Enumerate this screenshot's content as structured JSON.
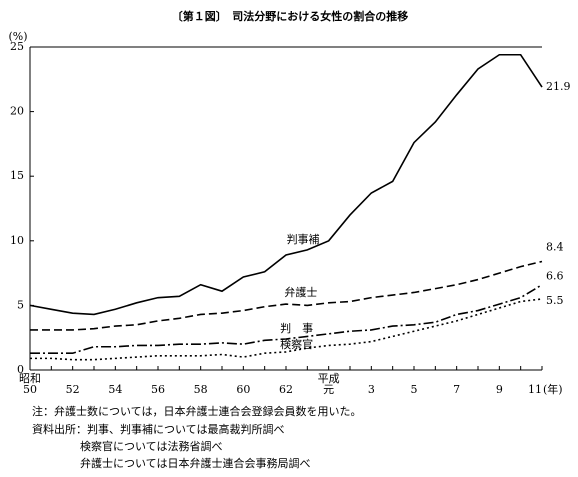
{
  "chart_data": {
    "type": "line",
    "title": "〔第１図〕　司法分野における女性の割合の推移",
    "y_label": "(%)",
    "x_label": "(年)",
    "era_labels": [
      "昭和",
      "平成"
    ],
    "categories": [
      "50",
      null,
      "52",
      null,
      "54",
      null,
      "56",
      null,
      "58",
      null,
      "60",
      null,
      "62",
      null,
      "元",
      null,
      "3",
      null,
      "5",
      null,
      "7",
      null,
      "9",
      null,
      "11"
    ],
    "ylim": [
      0,
      25
    ],
    "yticks": [
      0,
      5,
      10,
      15,
      20,
      25
    ],
    "series": [
      {
        "name": "判事補",
        "color": "#000000",
        "values": [
          5.0,
          4.7,
          4.4,
          4.3,
          4.7,
          5.2,
          5.6,
          5.7,
          6.6,
          6.1,
          7.2,
          7.6,
          8.9,
          9.3,
          10.0,
          12.0,
          13.7,
          14.6,
          17.6,
          19.2,
          21.3,
          23.3,
          24.4,
          24.4,
          21.9
        ]
      },
      {
        "name": "弁護士",
        "color": "#000000",
        "values": [
          3.1,
          3.1,
          3.1,
          3.2,
          3.4,
          3.5,
          3.8,
          4.0,
          4.3,
          4.4,
          4.6,
          4.9,
          5.1,
          5.0,
          5.2,
          5.3,
          5.6,
          5.8,
          6.0,
          6.3,
          6.6,
          7.0,
          7.5,
          8.0,
          8.4
        ]
      },
      {
        "name": "判　事",
        "color": "#000000",
        "values": [
          1.3,
          1.3,
          1.3,
          1.8,
          1.8,
          1.9,
          1.9,
          2.0,
          2.0,
          2.1,
          2.0,
          2.3,
          2.4,
          2.6,
          2.8,
          3.0,
          3.1,
          3.4,
          3.5,
          3.7,
          4.3,
          4.6,
          5.1,
          5.6,
          6.6
        ]
      },
      {
        "name": "検察官",
        "color": "#000000",
        "values": [
          0.9,
          0.9,
          0.8,
          0.8,
          0.9,
          1.0,
          1.1,
          1.1,
          1.1,
          1.2,
          1.0,
          1.3,
          1.4,
          1.7,
          1.9,
          2.0,
          2.2,
          2.6,
          3.0,
          3.4,
          3.8,
          4.3,
          4.8,
          5.3,
          5.5
        ]
      }
    ],
    "notes": [
      "注：弁護士数については，日本弁護士連合会登録会員数を用いた。",
      "資料出所：判事、判事補については最高裁判所調べ",
      "検察官については法務省調べ",
      "弁護士については日本弁護士連合会事務局調べ"
    ]
  }
}
